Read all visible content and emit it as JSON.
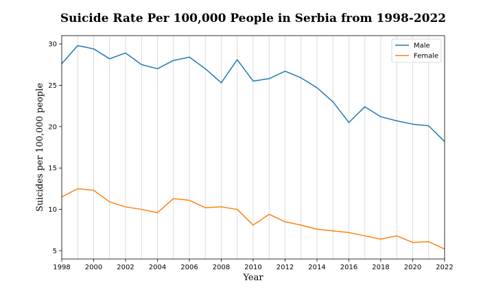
{
  "chart_data": {
    "type": "line",
    "title": "Suicide Rate Per 100,000 People in Serbia from 1998-2022",
    "xlabel": "Year",
    "ylabel": "Suicides per 100,000 people",
    "xlim": [
      1998,
      2022
    ],
    "ylim": [
      4,
      31
    ],
    "x_ticks": [
      1998,
      2000,
      2002,
      2004,
      2006,
      2008,
      2010,
      2012,
      2014,
      2016,
      2018,
      2020,
      2022
    ],
    "y_ticks": [
      5,
      10,
      15,
      20,
      25,
      30
    ],
    "grid": "vertical",
    "legend_position": "top-right",
    "x": [
      1998,
      1999,
      2000,
      2001,
      2002,
      2003,
      2004,
      2005,
      2006,
      2007,
      2008,
      2009,
      2010,
      2011,
      2012,
      2013,
      2014,
      2015,
      2016,
      2017,
      2018,
      2019,
      2020,
      2021,
      2022
    ],
    "series": [
      {
        "name": "Male",
        "color": "#1f77b4",
        "values": [
          27.6,
          29.8,
          29.4,
          28.2,
          28.9,
          27.5,
          27.0,
          28.0,
          28.4,
          27.0,
          25.3,
          28.1,
          25.5,
          25.8,
          26.7,
          25.9,
          24.7,
          23.0,
          20.5,
          22.4,
          21.2,
          20.7,
          20.3,
          20.1,
          18.2
        ]
      },
      {
        "name": "Female",
        "color": "#ff7f0e",
        "values": [
          11.5,
          12.5,
          12.3,
          10.9,
          10.3,
          10.0,
          9.6,
          11.3,
          11.1,
          10.2,
          10.3,
          10.0,
          8.1,
          9.4,
          8.5,
          8.1,
          7.6,
          7.4,
          7.2,
          6.8,
          6.4,
          6.8,
          6.0,
          6.1,
          5.2
        ]
      }
    ]
  }
}
